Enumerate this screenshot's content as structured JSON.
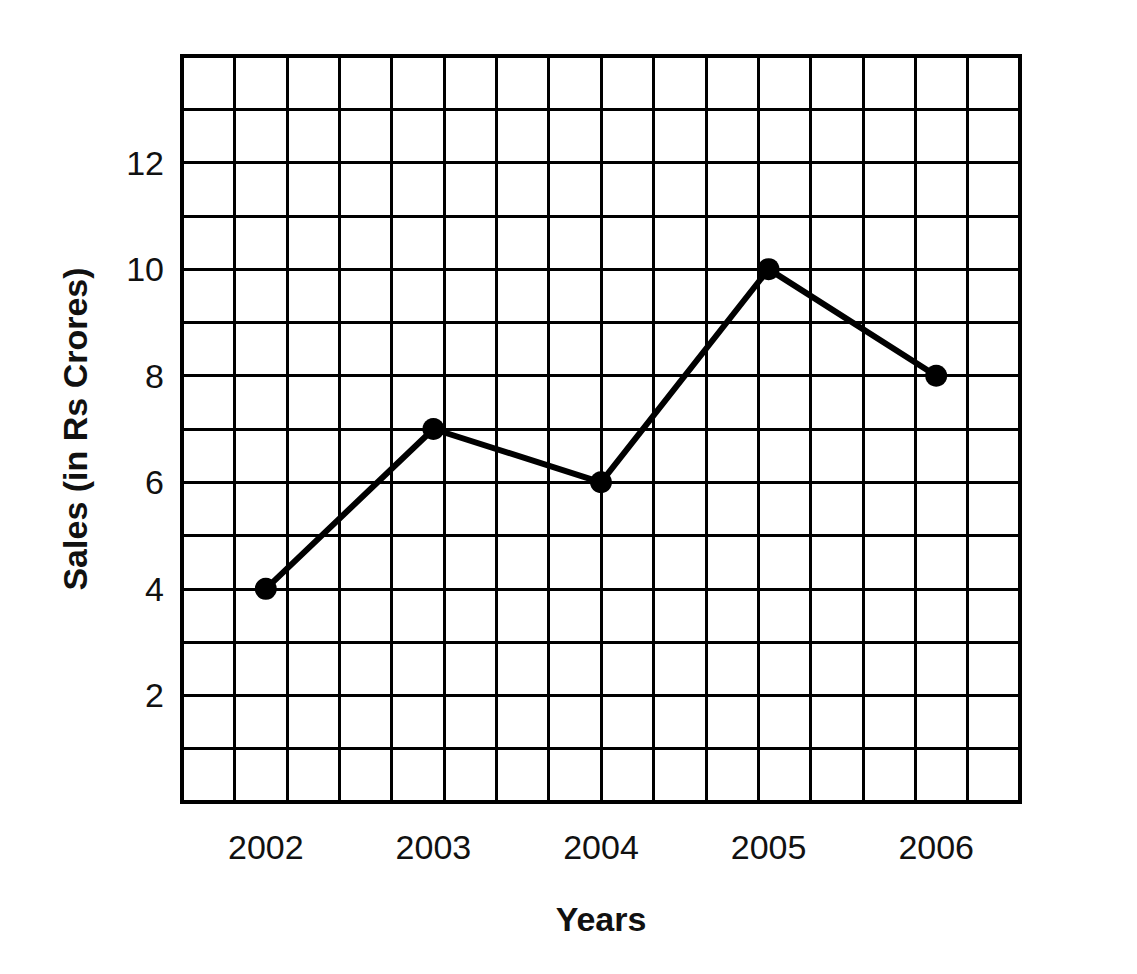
{
  "chart_data": {
    "type": "line",
    "x_label": "Years",
    "y_label": "Sales (in Rs Crores)",
    "categories": [
      "2002",
      "2003",
      "2004",
      "2005",
      "2006"
    ],
    "values": [
      4,
      7,
      6,
      10,
      8
    ],
    "color": "#000000",
    "ylim": [
      0,
      14
    ],
    "yticks": [
      2,
      4,
      6,
      8,
      10,
      12
    ],
    "grid": true,
    "marker": "circle"
  }
}
